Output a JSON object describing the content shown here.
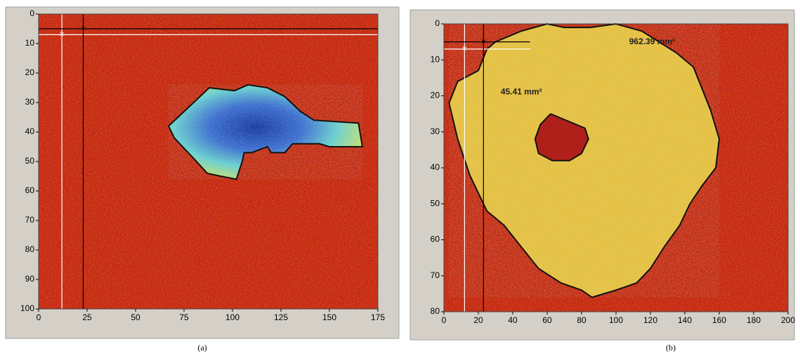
{
  "chart_data": [
    {
      "type": "heatmap",
      "label": "(a)",
      "xlim": [
        0,
        175
      ],
      "xticks": [
        0,
        25,
        50,
        75,
        100,
        125,
        150,
        175
      ],
      "ylim": [
        0,
        100
      ],
      "yticks": [
        0,
        10,
        20,
        30,
        40,
        50,
        60,
        70,
        80,
        90,
        100
      ],
      "cursors": [
        {
          "color": "white",
          "x": 12,
          "y": 7
        },
        {
          "color": "black",
          "x": 23,
          "y": 5
        }
      ],
      "contours": [
        {
          "x": [
            67,
            80,
            88,
            101,
            108,
            118,
            127,
            135,
            142,
            165,
            167,
            150,
            145,
            131,
            127,
            120,
            118,
            110,
            106,
            105,
            102,
            94,
            87,
            80,
            70,
            67
          ],
          "y": [
            38,
            30,
            25,
            26,
            24,
            25,
            28,
            33,
            36,
            37,
            45,
            45,
            44,
            44,
            47,
            47,
            45,
            47,
            47,
            50,
            56,
            55,
            54,
            49,
            42,
            38
          ]
        }
      ],
      "annotations": []
    },
    {
      "type": "heatmap",
      "label": "(b)",
      "xlim": [
        0,
        200
      ],
      "xticks": [
        0,
        20,
        40,
        60,
        80,
        100,
        120,
        140,
        160,
        180,
        200
      ],
      "ylim": [
        0,
        80
      ],
      "yticks": [
        0,
        10,
        20,
        30,
        40,
        50,
        60,
        70,
        80
      ],
      "cursors": [
        {
          "color": "white",
          "x": 12,
          "y": 7
        },
        {
          "color": "black",
          "x": 23,
          "y": 5
        }
      ],
      "contours": [
        {
          "x": [
            20,
            25,
            30,
            45,
            60,
            70,
            85,
            100,
            115,
            125,
            135,
            145,
            150,
            155,
            160,
            158,
            150,
            143,
            137,
            128,
            120,
            112,
            100,
            86,
            80,
            68,
            55,
            45,
            35,
            25,
            15,
            8,
            3,
            8,
            20
          ],
          "y": [
            13,
            7,
            5,
            2,
            0,
            1,
            1,
            0,
            2,
            5,
            8,
            12,
            18,
            24,
            32,
            40,
            45,
            50,
            56,
            62,
            68,
            72,
            74,
            76,
            74,
            72,
            68,
            62,
            56,
            52,
            42,
            32,
            22,
            16,
            13
          ]
        },
        {
          "x": [
            62,
            72,
            82,
            84,
            80,
            73,
            63,
            55,
            53,
            56,
            62
          ],
          "y": [
            25,
            27,
            29,
            32,
            36,
            38,
            38,
            36,
            32,
            28,
            25
          ]
        }
      ],
      "annotations": [
        {
          "text": "962.39 mm²",
          "x": 121,
          "y": 5
        },
        {
          "text": "45.41 mm²",
          "x": 45,
          "y": 19
        }
      ]
    }
  ]
}
